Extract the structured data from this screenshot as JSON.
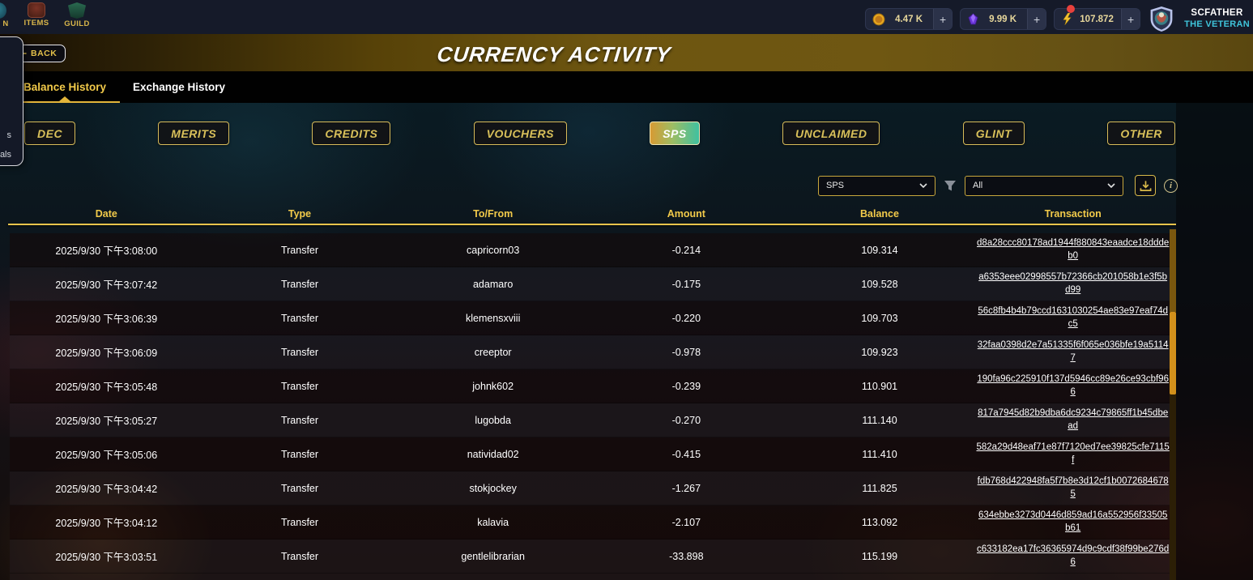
{
  "topbar": {
    "nav": [
      {
        "id": "cut",
        "label": "N"
      },
      {
        "id": "items",
        "label": "ITEMS"
      },
      {
        "id": "guild",
        "label": "GUILD"
      }
    ],
    "currencies": [
      {
        "id": "gold",
        "value": "4.47 K",
        "plus": "+",
        "notification": false
      },
      {
        "id": "crystal",
        "value": "9.99 K",
        "plus": "+",
        "notification": false
      },
      {
        "id": "sps",
        "value": "107.872",
        "plus": "+",
        "notification": true
      }
    ],
    "player": {
      "name": "SCFATHER",
      "title": "THE VETERAN"
    }
  },
  "header": {
    "back": "BACK",
    "title": "CURRENCY ACTIVITY"
  },
  "tabs": [
    {
      "label": "Balance History",
      "active": true
    },
    {
      "label": "Exchange History",
      "active": false
    }
  ],
  "side_panel": {
    "fragments": [
      "s",
      "als"
    ]
  },
  "filters": [
    {
      "label": "DEC",
      "active": false
    },
    {
      "label": "MERITS",
      "active": false
    },
    {
      "label": "CREDITS",
      "active": false
    },
    {
      "label": "VOUCHERS",
      "active": false
    },
    {
      "label": "SPS",
      "active": true
    },
    {
      "label": "UNCLAIMED",
      "active": false
    },
    {
      "label": "GLINT",
      "active": false
    },
    {
      "label": "OTHER",
      "active": false
    }
  ],
  "controls": {
    "currency_select": "SPS",
    "range_select": "All"
  },
  "table": {
    "columns": [
      "Date",
      "Type",
      "To/From",
      "Amount",
      "Balance",
      "Transaction"
    ],
    "rows": [
      {
        "date": "2025/9/30 下午3:08:00",
        "type": "Transfer",
        "to_from": "capricorn03",
        "amount": "-0.214",
        "balance": "109.314",
        "tx": "d8a28ccc80178ad1944f880843eaadce18dddeb0"
      },
      {
        "date": "2025/9/30 下午3:07:42",
        "type": "Transfer",
        "to_from": "adamaro",
        "amount": "-0.175",
        "balance": "109.528",
        "tx": "a6353eee02998557b72366cb201058b1e3f5bd99"
      },
      {
        "date": "2025/9/30 下午3:06:39",
        "type": "Transfer",
        "to_from": "klemensxviii",
        "amount": "-0.220",
        "balance": "109.703",
        "tx": "56c8fb4b4b79ccd1631030254ae83e97eaf74dc5"
      },
      {
        "date": "2025/9/30 下午3:06:09",
        "type": "Transfer",
        "to_from": "creeptor",
        "amount": "-0.978",
        "balance": "109.923",
        "tx": "32faa0398d2e7a51335f6f065e036bfe19a51147"
      },
      {
        "date": "2025/9/30 下午3:05:48",
        "type": "Transfer",
        "to_from": "johnk602",
        "amount": "-0.239",
        "balance": "110.901",
        "tx": "190fa96c225910f137d5946cc89e26ce93cbf966"
      },
      {
        "date": "2025/9/30 下午3:05:27",
        "type": "Transfer",
        "to_from": "lugobda",
        "amount": "-0.270",
        "balance": "111.140",
        "tx": "817a7945d82b9dba6dc9234c79865ff1b45dbead"
      },
      {
        "date": "2025/9/30 下午3:05:06",
        "type": "Transfer",
        "to_from": "natividad02",
        "amount": "-0.415",
        "balance": "111.410",
        "tx": "582a29d48eaf71e87f7120ed7ee39825cfe7115f"
      },
      {
        "date": "2025/9/30 下午3:04:42",
        "type": "Transfer",
        "to_from": "stokjockey",
        "amount": "-1.267",
        "balance": "111.825",
        "tx": "fdb768d422948fa5f7b8e3d12cf1b00726846785"
      },
      {
        "date": "2025/9/30 下午3:04:12",
        "type": "Transfer",
        "to_from": "kalavia",
        "amount": "-2.107",
        "balance": "113.092",
        "tx": "634ebbe3273d0446d859ad16a552956f33505b61"
      },
      {
        "date": "2025/9/30 下午3:03:51",
        "type": "Transfer",
        "to_from": "gentlelibrarian",
        "amount": "-33.898",
        "balance": "115.199",
        "tx": "c633182ea17fc36365974d9c9cdf38f99be276d6"
      }
    ]
  },
  "colors": {
    "accent_gold": "#e8c44c",
    "active_tab_gold": "#f2ca4a",
    "filter_active_start": "#d79a33",
    "filter_active_end": "#3fc0a0",
    "player_title_cyan": "#3fc4da",
    "notification_red": "#e8413c",
    "scroll_thumb": "#d2901b"
  }
}
